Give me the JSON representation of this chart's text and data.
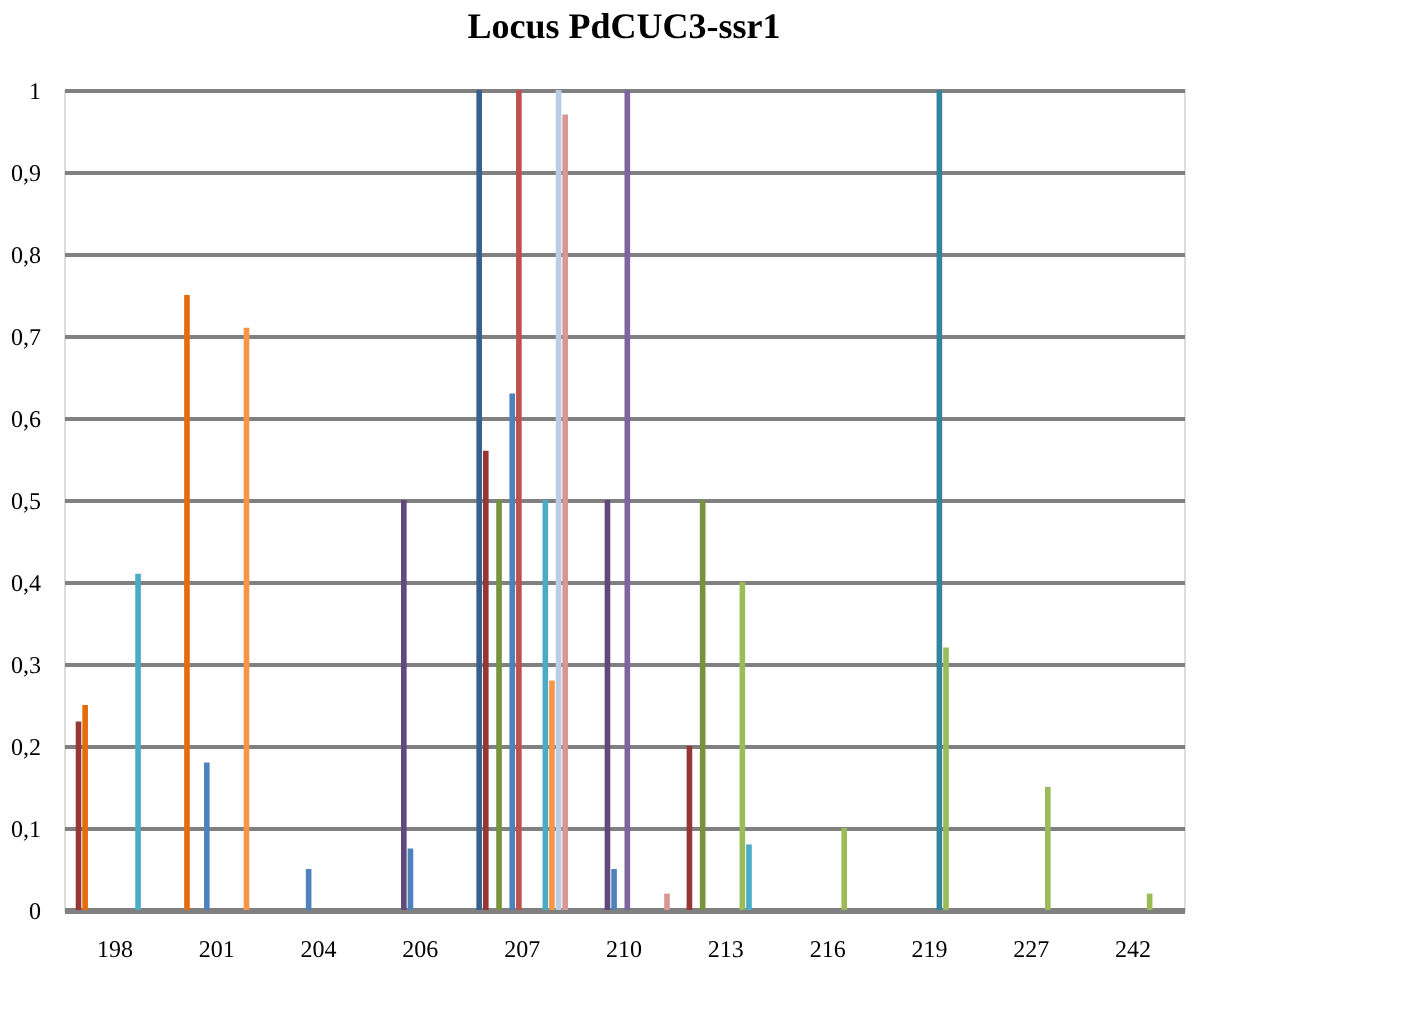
{
  "chart_data": {
    "type": "bar",
    "title": "Locus PdCUC3-ssr1",
    "categories": [
      "198",
      "201",
      "204",
      "206",
      "207",
      "210",
      "213",
      "216",
      "219",
      "227",
      "242"
    ],
    "series": [
      {
        "color": "#376092",
        "values": [
          null,
          null,
          null,
          null,
          1,
          null,
          null,
          null,
          null,
          null,
          null
        ]
      },
      {
        "color": "#953735",
        "values": [
          0.23,
          null,
          null,
          null,
          0.56,
          null,
          0.2,
          null,
          null,
          null,
          null
        ]
      },
      {
        "color": "#e46c0a",
        "values": [
          0.25,
          0.75,
          null,
          null,
          null,
          null,
          null,
          null,
          null,
          null,
          null
        ]
      },
      {
        "color": "#77933c",
        "values": [
          null,
          null,
          null,
          null,
          0.5,
          null,
          0.5,
          null,
          null,
          null,
          null
        ]
      },
      {
        "color": "#604a7b",
        "values": [
          null,
          null,
          null,
          0.5,
          null,
          0.5,
          null,
          null,
          null,
          null,
          null
        ]
      },
      {
        "color": "#4f81bd",
        "values": [
          null,
          0.18,
          0.05,
          0.075,
          0.63,
          0.05,
          null,
          null,
          null,
          null,
          null
        ]
      },
      {
        "color": "#c0504d",
        "values": [
          null,
          null,
          null,
          null,
          1,
          null,
          null,
          null,
          null,
          null,
          null
        ]
      },
      {
        "color": "#8064a2",
        "values": [
          null,
          null,
          null,
          null,
          null,
          1,
          null,
          null,
          null,
          null,
          null
        ]
      },
      {
        "color": "#31859c",
        "values": [
          null,
          null,
          null,
          null,
          null,
          null,
          null,
          null,
          1,
          null,
          null
        ]
      },
      {
        "color": "#9bbb59",
        "values": [
          null,
          null,
          null,
          null,
          null,
          null,
          0.4,
          0.1,
          0.32,
          0.15,
          0.02
        ]
      },
      {
        "color": "#4bacc6",
        "values": [
          0.41,
          null,
          null,
          null,
          0.5,
          null,
          0.08,
          null,
          null,
          null,
          null
        ]
      },
      {
        "color": "#f79646",
        "values": [
          null,
          0.71,
          null,
          null,
          0.28,
          null,
          null,
          null,
          null,
          null,
          null
        ]
      },
      {
        "color": "#b9cde5",
        "values": [
          null,
          null,
          null,
          null,
          1,
          null,
          null,
          null,
          null,
          null,
          null
        ]
      },
      {
        "color": "#d99694",
        "values": [
          null,
          null,
          null,
          null,
          0.97,
          0.02,
          null,
          null,
          null,
          null,
          null
        ]
      }
    ],
    "ylim": [
      0,
      1
    ],
    "yticks": [
      0,
      {
        "value": 0.1,
        "label": "0,1"
      },
      {
        "value": 0.2,
        "label": "0,2"
      },
      {
        "value": 0.3,
        "label": "0,3"
      },
      {
        "value": 0.4,
        "label": "0,4"
      },
      {
        "value": 0.5,
        "label": "0,5"
      },
      {
        "value": 0.6,
        "label": "0,6"
      },
      {
        "value": 0.7,
        "label": "0,7"
      },
      {
        "value": 0.8,
        "label": "0,8"
      },
      {
        "value": 0.9,
        "label": "0,9"
      },
      1
    ],
    "grid": "y",
    "legend": false
  }
}
